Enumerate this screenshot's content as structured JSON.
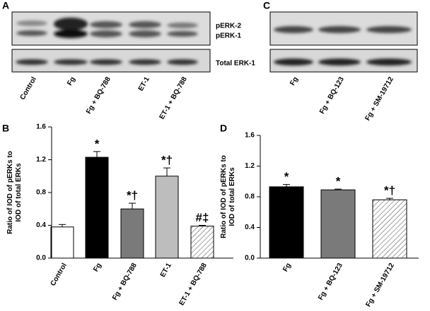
{
  "blots": [
    {
      "panel_label": "A",
      "lanes": [
        "Control",
        "Fg",
        "Fg + BQ-788",
        "ET-1",
        "ET-1 + BQ-788"
      ],
      "band_labels": [
        "pERK-2",
        "pERK-1",
        "Total ERK-1"
      ]
    },
    {
      "panel_label": "C",
      "lanes": [
        "Fg",
        "Fg + BQ-123",
        "Fg + SM-19712"
      ]
    }
  ],
  "chart_data": [
    {
      "type": "bar",
      "panel_label": "B",
      "y_label": [
        "Ratio of IOD of pERKs to",
        "IOD of total ERKs"
      ],
      "categories": [
        "Control",
        "Fg",
        "Fg + BQ-788",
        "ET-1",
        "ET-1 + BQ-788"
      ],
      "values": [
        0.38,
        1.23,
        0.6,
        1.0,
        0.39
      ],
      "errors": [
        0.03,
        0.07,
        0.07,
        0.1,
        0.01
      ],
      "annotations": [
        null,
        "*",
        "*†",
        "*†",
        "#‡"
      ],
      "fills": [
        "#ffffff",
        "#000000",
        "#7a7a7a",
        "#bdbdbd",
        "hatch"
      ],
      "ylim": [
        0,
        1.6
      ],
      "yticks": [
        {
          "value": 0,
          "label": "0.0"
        },
        {
          "value": 0.4,
          "label": "0.4"
        },
        {
          "value": 0.8,
          "label": "0.8"
        },
        {
          "value": 1.2,
          "label": "1.2"
        },
        {
          "value": 1.6,
          "label": "1.6"
        }
      ]
    },
    {
      "type": "bar",
      "panel_label": "D",
      "y_label": [
        "Ratio of IOD of pERKs to",
        "IOD of total ERKs"
      ],
      "categories": [
        "Fg",
        "Fg + BQ-123",
        "Fg + SM-19712"
      ],
      "values": [
        0.93,
        0.89,
        0.76
      ],
      "errors": [
        0.03,
        0.01,
        0.02
      ],
      "annotations": [
        "*",
        "*",
        "*†"
      ],
      "fills": [
        "#000000",
        "#7a7a7a",
        "hatch"
      ],
      "ylim": [
        0,
        1.6
      ],
      "yticks": [
        {
          "value": 0,
          "label": "0.0"
        },
        {
          "value": 0.4,
          "label": "0.4"
        },
        {
          "value": 0.8,
          "label": "0.8"
        },
        {
          "value": 1.2,
          "label": "1.2"
        },
        {
          "value": 1.6,
          "label": "1.6"
        }
      ]
    }
  ]
}
